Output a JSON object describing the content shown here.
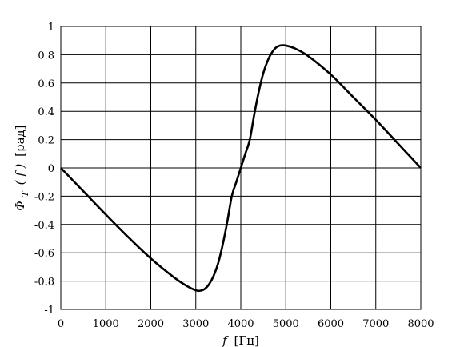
{
  "chart_data": {
    "type": "line",
    "xlabel_var": "f",
    "xlabel_unit": "[Гц]",
    "ylabel_var": "Φ",
    "ylabel_sub": "T",
    "ylabel_arg": "( f )",
    "ylabel_unit": "[рад]",
    "xlim": [
      0,
      8000
    ],
    "ylim": [
      -1,
      1
    ],
    "grid": true,
    "x_ticks": [
      "0",
      "1000",
      "2000",
      "3000",
      "4000",
      "5000",
      "6000",
      "7000",
      "8000"
    ],
    "y_ticks": [
      "1",
      "0.8",
      "0.6",
      "0.4",
      "0.2",
      "0",
      "-0.2",
      "-0.4",
      "-0.6",
      "-0.8",
      "-1"
    ],
    "series": [
      {
        "x": [
          0,
          500,
          1000,
          1500,
          2000,
          2500,
          2800,
          3000,
          3100,
          3200,
          3300,
          3400,
          3500,
          3600,
          3700,
          3800,
          3900,
          4000,
          4100,
          4200,
          4300,
          4400,
          4500,
          4600,
          4700,
          4800,
          4900,
          5000,
          5200,
          5500,
          6000,
          6500,
          7000,
          7500,
          8000
        ],
        "y": [
          0,
          -0.165,
          -0.33,
          -0.49,
          -0.64,
          -0.77,
          -0.835,
          -0.865,
          -0.868,
          -0.855,
          -0.82,
          -0.76,
          -0.67,
          -0.54,
          -0.38,
          -0.2,
          -0.1,
          0,
          0.1,
          0.2,
          0.38,
          0.54,
          0.67,
          0.76,
          0.82,
          0.855,
          0.866,
          0.865,
          0.845,
          0.79,
          0.66,
          0.5,
          0.34,
          0.17,
          0
        ]
      }
    ]
  }
}
